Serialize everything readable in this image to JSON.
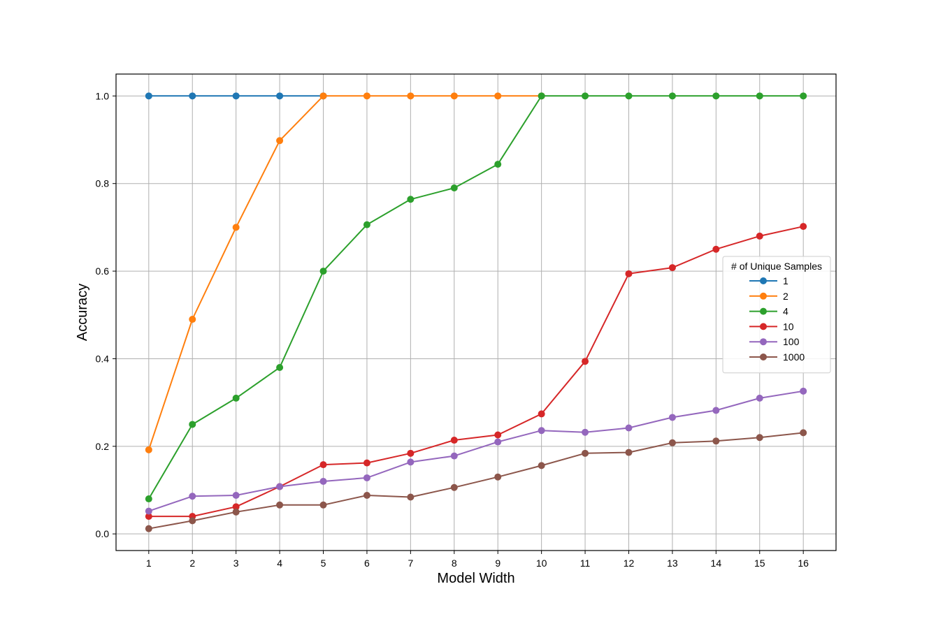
{
  "chart_data": {
    "type": "line",
    "title": "",
    "xlabel": "Model Width",
    "ylabel": "Accuracy",
    "x": [
      1,
      2,
      3,
      4,
      5,
      6,
      7,
      8,
      9,
      10,
      11,
      12,
      13,
      14,
      15,
      16
    ],
    "x_ticks": [
      "1",
      "2",
      "3",
      "4",
      "5",
      "6",
      "7",
      "8",
      "9",
      "10",
      "11",
      "12",
      "13",
      "14",
      "15",
      "16"
    ],
    "y_ticks": [
      "0.0",
      "0.2",
      "0.4",
      "0.6",
      "0.8",
      "1.0"
    ],
    "xlim": [
      0.25,
      16.75
    ],
    "ylim": [
      -0.038,
      1.05
    ],
    "grid": true,
    "legend": {
      "title": "# of Unique Samples",
      "placement": "center-right"
    },
    "series": [
      {
        "name": "1",
        "color": "#1f77b4",
        "x": [
          1,
          2,
          3,
          4,
          5
        ],
        "values": [
          1.0,
          1.0,
          1.0,
          1.0,
          1.0
        ]
      },
      {
        "name": "2",
        "color": "#ff7f0e",
        "x": [
          1,
          2,
          3,
          4,
          5,
          6,
          7,
          8,
          9,
          10
        ],
        "values": [
          0.192,
          0.49,
          0.7,
          0.898,
          1.0,
          1.0,
          1.0,
          1.0,
          1.0,
          1.0
        ]
      },
      {
        "name": "4",
        "color": "#2ca02c",
        "x": [
          1,
          2,
          3,
          4,
          5,
          6,
          7,
          8,
          9,
          10,
          11,
          12,
          13,
          14,
          15,
          16
        ],
        "values": [
          0.08,
          0.25,
          0.31,
          0.38,
          0.6,
          0.706,
          0.764,
          0.79,
          0.844,
          1.0,
          1.0,
          1.0,
          1.0,
          1.0,
          1.0,
          1.0
        ]
      },
      {
        "name": "10",
        "color": "#d62728",
        "x": [
          1,
          2,
          3,
          4,
          5,
          6,
          7,
          8,
          9,
          10,
          11,
          12,
          13,
          14,
          15,
          16
        ],
        "values": [
          0.04,
          0.04,
          0.062,
          0.108,
          0.158,
          0.162,
          0.184,
          0.214,
          0.226,
          0.274,
          0.394,
          0.594,
          0.608,
          0.65,
          0.68,
          0.702
        ]
      },
      {
        "name": "100",
        "color": "#9467bd",
        "x": [
          1,
          2,
          3,
          4,
          5,
          6,
          7,
          8,
          9,
          10,
          11,
          12,
          13,
          14,
          15,
          16
        ],
        "values": [
          0.052,
          0.086,
          0.088,
          0.108,
          0.12,
          0.128,
          0.164,
          0.178,
          0.21,
          0.236,
          0.232,
          0.242,
          0.266,
          0.282,
          0.31,
          0.326
        ]
      },
      {
        "name": "1000",
        "color": "#8c564b",
        "x": [
          1,
          2,
          3,
          4,
          5,
          6,
          7,
          8,
          9,
          10,
          11,
          12,
          13,
          14,
          15,
          16
        ],
        "values": [
          0.012,
          0.03,
          0.05,
          0.066,
          0.066,
          0.088,
          0.084,
          0.106,
          0.13,
          0.156,
          0.184,
          0.186,
          0.208,
          0.212,
          0.22,
          0.231
        ]
      }
    ]
  }
}
